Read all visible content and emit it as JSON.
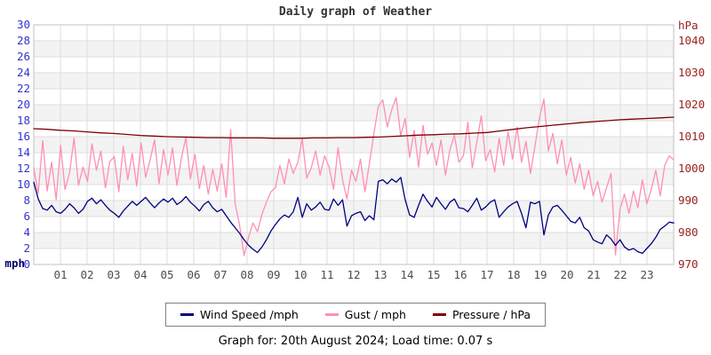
{
  "title": "Daily graph of Weather",
  "footer": "Graph for: 20th August 2024; Load time: 0.07 s",
  "chart_data": {
    "type": "line",
    "title": "Daily graph of Weather",
    "grid": true,
    "legend_position": "bottom",
    "x_range_hours": [
      0,
      24
    ],
    "x_ticks": [
      "01",
      "02",
      "03",
      "04",
      "05",
      "06",
      "07",
      "08",
      "09",
      "10",
      "11",
      "12",
      "13",
      "14",
      "15",
      "16",
      "17",
      "18",
      "19",
      "20",
      "21",
      "22",
      "23"
    ],
    "x_tick_color": "#4d4d4d",
    "left_axis": {
      "label": "mph",
      "label_color": "#00006e",
      "min": 0,
      "max": 30,
      "tick_step": 2,
      "tick_color": "#3333cc"
    },
    "right_axis": {
      "label": "hPa",
      "min": 970,
      "max": 1045,
      "ticks": [
        1040,
        1030,
        1020,
        1010,
        1000,
        990,
        980,
        970
      ],
      "tick_color": "#992222"
    },
    "band_colors": {
      "even": "#ffffff",
      "odd": "#f3f3f3"
    },
    "gridline_color": "#dcdcdc",
    "plot_border_color": "#c0c0c0",
    "series": [
      {
        "name": "Wind Speed /mph",
        "axis": "left",
        "color": "#000080",
        "z": 2,
        "interval_minutes": 10,
        "values": [
          10.3,
          8.2,
          7.0,
          6.8,
          7.4,
          6.6,
          6.4,
          6.9,
          7.6,
          7.1,
          6.4,
          6.9,
          7.9,
          8.3,
          7.6,
          8.1,
          7.4,
          6.8,
          6.4,
          5.9,
          6.7,
          7.3,
          7.9,
          7.4,
          7.9,
          8.4,
          7.7,
          7.1,
          7.7,
          8.2,
          7.8,
          8.3,
          7.5,
          7.9,
          8.5,
          7.8,
          7.3,
          6.7,
          7.5,
          7.9,
          7.1,
          6.6,
          6.9,
          6.1,
          5.3,
          4.6,
          3.9,
          3.1,
          2.4,
          1.9,
          1.5,
          2.2,
          3.1,
          4.2,
          5.0,
          5.7,
          6.2,
          5.9,
          6.6,
          8.4,
          5.9,
          7.6,
          6.8,
          7.2,
          7.8,
          6.9,
          6.8,
          8.2,
          7.4,
          8.1,
          4.8,
          6.1,
          6.4,
          6.6,
          5.5,
          6.1,
          5.6,
          10.4,
          10.6,
          10.1,
          10.7,
          10.3,
          10.9,
          8.1,
          6.2,
          5.9,
          7.4,
          8.8,
          7.9,
          7.2,
          8.4,
          7.6,
          6.9,
          7.8,
          8.2,
          7.1,
          7.0,
          6.6,
          7.4,
          8.3,
          6.8,
          7.2,
          7.8,
          8.1,
          5.9,
          6.6,
          7.2,
          7.6,
          7.9,
          6.4,
          4.6,
          7.8,
          7.6,
          7.9,
          3.7,
          6.2,
          7.2,
          7.4,
          6.8,
          6.1,
          5.4,
          5.2,
          5.9,
          4.6,
          4.2,
          3.1,
          2.8,
          2.6,
          3.7,
          3.2,
          2.4,
          3.1,
          2.2,
          1.8,
          2.0,
          1.6,
          1.4,
          2.0,
          2.6,
          3.4,
          4.4,
          4.8,
          5.3,
          5.2
        ]
      },
      {
        "name": "Gust / mph",
        "axis": "left",
        "color": "#ff8fb4",
        "z": 1,
        "interval_minutes": 10,
        "values": [
          12.1,
          8.9,
          15.5,
          9.2,
          12.8,
          8.1,
          14.9,
          9.4,
          11.5,
          15.8,
          9.9,
          12.2,
          10.4,
          15.1,
          11.8,
          14.2,
          9.6,
          12.9,
          13.5,
          9.1,
          14.8,
          10.6,
          13.9,
          9.8,
          15.2,
          10.9,
          13.1,
          15.6,
          10.1,
          14.4,
          11.2,
          14.6,
          9.9,
          13.4,
          15.9,
          10.7,
          13.8,
          9.5,
          12.4,
          8.8,
          11.9,
          9.2,
          12.6,
          8.4,
          16.9,
          7.6,
          4.9,
          1.1,
          3.4,
          5.2,
          4.1,
          6.3,
          7.8,
          9.1,
          9.6,
          12.4,
          10.1,
          13.2,
          11.4,
          12.8,
          15.7,
          10.8,
          12.1,
          14.2,
          11.2,
          13.6,
          12.2,
          9.4,
          14.6,
          10.6,
          8.2,
          11.8,
          10.4,
          13.2,
          9.1,
          12.6,
          16.4,
          19.8,
          20.6,
          17.2,
          19.4,
          20.9,
          16.1,
          18.3,
          13.4,
          16.8,
          12.2,
          17.4,
          13.8,
          15.2,
          12.4,
          15.6,
          11.2,
          14.4,
          16.2,
          12.8,
          13.6,
          17.8,
          12.1,
          15.3,
          18.6,
          13.0,
          14.4,
          11.6,
          15.8,
          12.4,
          16.6,
          13.2,
          17.2,
          12.8,
          15.4,
          11.4,
          14.8,
          18.4,
          20.7,
          14.2,
          16.4,
          12.6,
          15.6,
          11.2,
          13.4,
          10.2,
          12.6,
          9.4,
          11.8,
          8.6,
          10.4,
          7.8,
          9.6,
          11.4,
          1.2,
          6.9,
          8.8,
          6.4,
          9.2,
          7.1,
          10.6,
          7.6,
          9.4,
          11.8,
          8.6,
          12.4,
          13.6,
          13.1
        ]
      },
      {
        "name": "Pressure / hPa",
        "axis": "right",
        "color": "#7d0000",
        "z": 3,
        "interval_minutes": 30,
        "values": [
          1012.5,
          1012.3,
          1012.0,
          1011.8,
          1011.5,
          1011.2,
          1011.0,
          1010.7,
          1010.4,
          1010.2,
          1010.0,
          1009.9,
          1009.8,
          1009.7,
          1009.7,
          1009.6,
          1009.6,
          1009.6,
          1009.5,
          1009.5,
          1009.5,
          1009.6,
          1009.6,
          1009.7,
          1009.7,
          1009.8,
          1009.9,
          1010.1,
          1010.3,
          1010.5,
          1010.6,
          1010.8,
          1010.9,
          1011.1,
          1011.3,
          1011.8,
          1012.3,
          1012.8,
          1013.2,
          1013.6,
          1014.0,
          1014.4,
          1014.7,
          1015.0,
          1015.3,
          1015.5,
          1015.7,
          1015.9,
          1016.1
        ]
      }
    ]
  }
}
